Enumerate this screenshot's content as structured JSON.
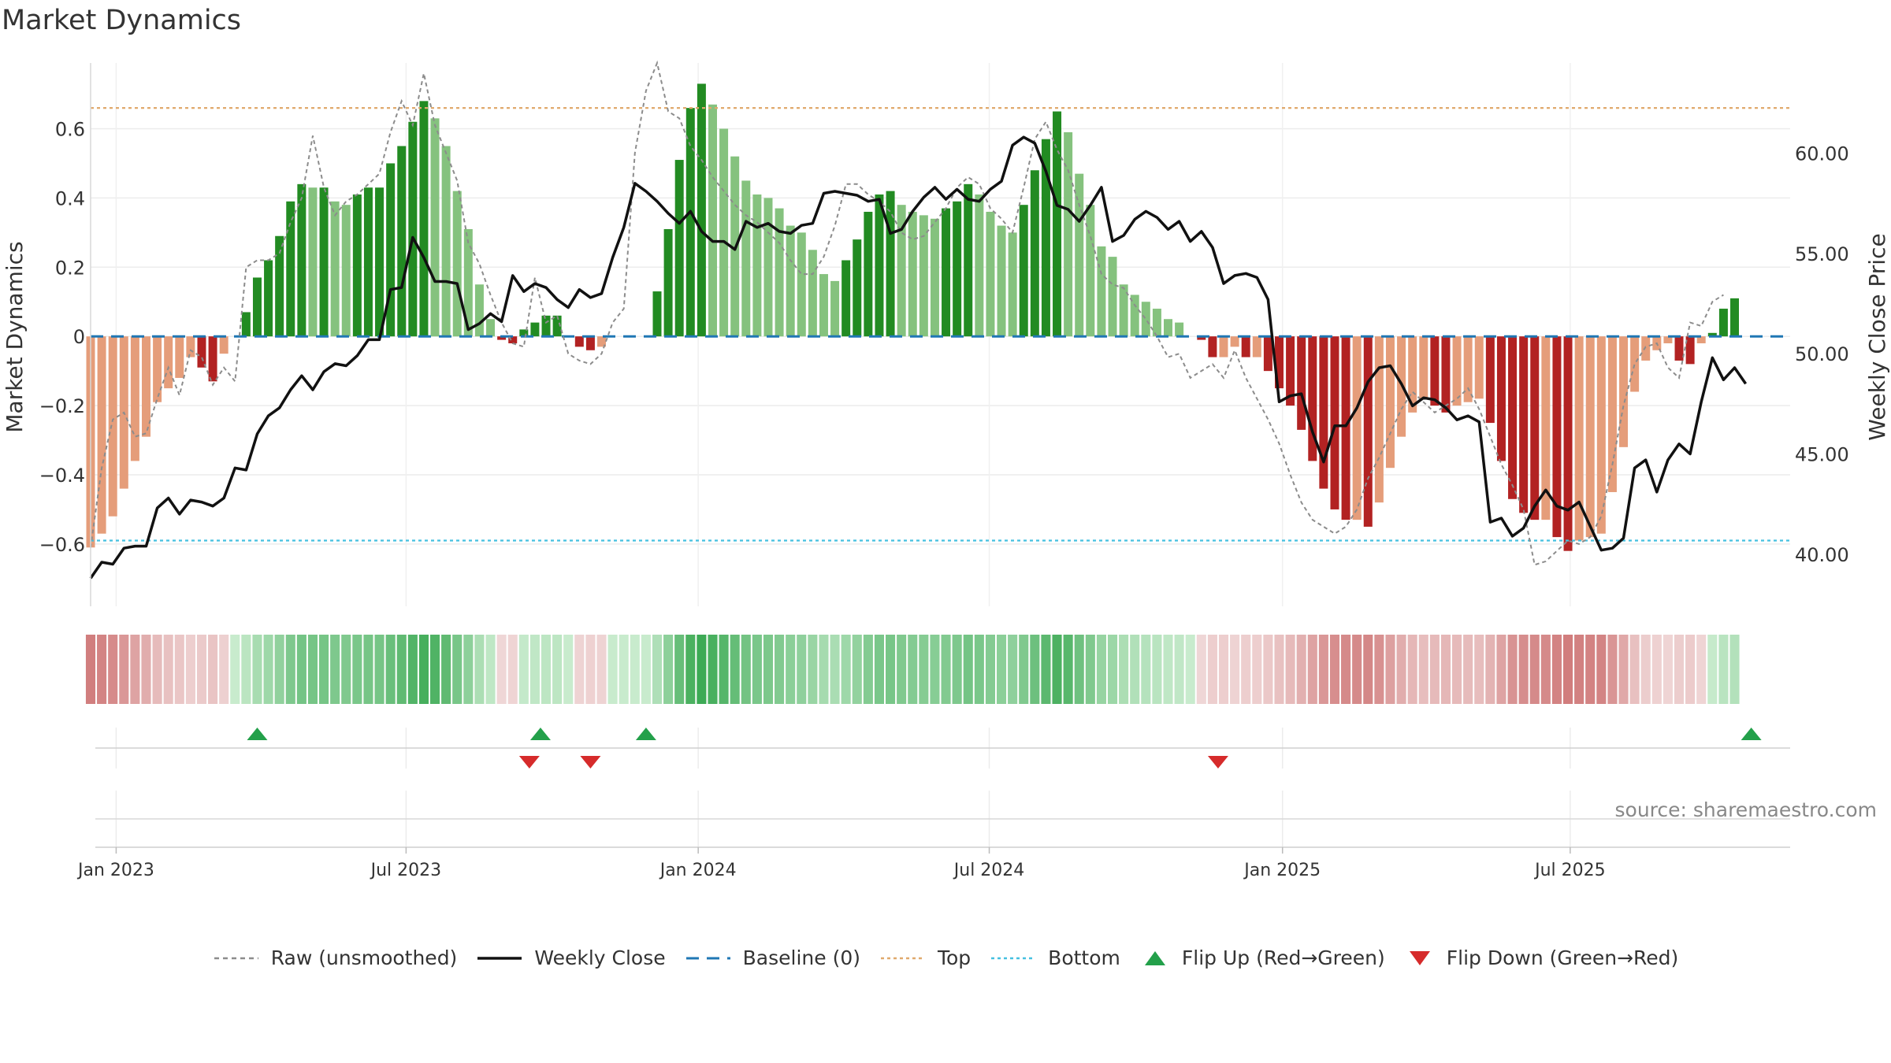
{
  "title": "Market Dynamics",
  "source_note": "source: sharemaestro.com",
  "chart_data": {
    "type": "bar",
    "title": "Market Dynamics",
    "ylabel_left": "Market Dynamics",
    "ylabel_right": "Weekly Close Price",
    "ylim_left": [
      -0.78,
      0.79
    ],
    "ylim_right": [
      37.4,
      64.5
    ],
    "yticks_left": [
      {
        "value": 0.6,
        "label": "0.6"
      },
      {
        "value": 0.4,
        "label": "0.4"
      },
      {
        "value": 0.2,
        "label": "0.2"
      },
      {
        "value": 0.0,
        "label": "0"
      },
      {
        "value": -0.2,
        "label": "−0.2"
      },
      {
        "value": -0.4,
        "label": "−0.4"
      },
      {
        "value": -0.6,
        "label": "−0.6"
      }
    ],
    "yticks_right": [
      {
        "value": 60,
        "label": "60.00"
      },
      {
        "value": 55,
        "label": "55.00"
      },
      {
        "value": 50,
        "label": "50.00"
      },
      {
        "value": 45,
        "label": "45.00"
      },
      {
        "value": 40,
        "label": "40.00"
      }
    ],
    "x_range_weeks": [
      0,
      153
    ],
    "xticks": [
      {
        "week": 2.3,
        "label": "Jan 2023"
      },
      {
        "week": 28.4,
        "label": "Jul 2023"
      },
      {
        "week": 54.7,
        "label": "Jan 2024"
      },
      {
        "week": 80.9,
        "label": "Jul 2024"
      },
      {
        "week": 107.3,
        "label": "Jan 2025"
      },
      {
        "week": 133.2,
        "label": "Jul 2025"
      }
    ],
    "top_level": 0.66,
    "bottom_level": -0.59,
    "baseline": 0,
    "dynamics": [
      -0.61,
      -0.57,
      -0.52,
      -0.44,
      -0.36,
      -0.29,
      -0.19,
      -0.15,
      -0.12,
      -0.06,
      -0.09,
      -0.13,
      -0.05,
      0,
      0.07,
      0.17,
      0.22,
      0.29,
      0.39,
      0.44,
      0.43,
      0.43,
      0.39,
      0.38,
      0.41,
      0.43,
      0.43,
      0.5,
      0.55,
      0.62,
      0.68,
      0.63,
      0.55,
      0.42,
      0.31,
      0.15,
      0.05,
      -0.01,
      -0.02,
      0.02,
      0.04,
      0.06,
      0.06,
      0,
      -0.03,
      -0.04,
      -0.03,
      0,
      0,
      0,
      0,
      0.13,
      0.31,
      0.51,
      0.66,
      0.73,
      0.67,
      0.6,
      0.52,
      0.45,
      0.41,
      0.4,
      0.37,
      0.32,
      0.3,
      0.25,
      0.18,
      0.16,
      0.22,
      0.28,
      0.36,
      0.41,
      0.42,
      0.38,
      0.36,
      0.35,
      0.34,
      0.37,
      0.39,
      0.44,
      0.41,
      0.36,
      0.32,
      0.3,
      0.38,
      0.48,
      0.57,
      0.65,
      0.59,
      0.47,
      0.38,
      0.26,
      0.23,
      0.15,
      0.12,
      0.1,
      0.08,
      0.05,
      0.04,
      0,
      -0.01,
      -0.06,
      -0.06,
      -0.03,
      -0.06,
      -0.06,
      -0.1,
      -0.15,
      -0.2,
      -0.27,
      -0.36,
      -0.44,
      -0.5,
      -0.53,
      -0.53,
      -0.55,
      -0.48,
      -0.38,
      -0.29,
      -0.22,
      -0.18,
      -0.2,
      -0.22,
      -0.2,
      -0.19,
      -0.18,
      -0.25,
      -0.36,
      -0.47,
      -0.51,
      -0.53,
      -0.53,
      -0.58,
      -0.62,
      -0.59,
      -0.58,
      -0.57,
      -0.45,
      -0.32,
      -0.16,
      -0.07,
      -0.04,
      -0.02,
      -0.07,
      -0.08,
      -0.02,
      0.01,
      0.08,
      0.11
    ],
    "weekly_close": [
      38.8,
      39.6,
      39.5,
      40.3,
      40.4,
      40.4,
      42.3,
      42.8,
      42.0,
      42.7,
      42.6,
      42.4,
      42.8,
      44.3,
      44.2,
      46.0,
      46.9,
      47.3,
      48.2,
      48.9,
      48.2,
      49.1,
      49.5,
      49.4,
      49.9,
      50.7,
      50.7,
      53.2,
      53.3,
      55.8,
      54.8,
      53.6,
      53.6,
      53.5,
      51.2,
      51.5,
      52.0,
      51.6,
      53.9,
      53.1,
      53.5,
      53.3,
      52.7,
      52.3,
      53.2,
      52.8,
      53.0,
      54.8,
      56.3,
      58.5,
      58.1,
      57.6,
      57.0,
      56.5,
      57.1,
      56.1,
      55.6,
      55.6,
      55.2,
      56.6,
      56.3,
      56.5,
      56.1,
      56.0,
      56.4,
      56.5,
      58.0,
      58.1,
      58.0,
      57.9,
      57.6,
      57.7,
      56.0,
      56.2,
      57.1,
      57.8,
      58.3,
      57.7,
      58.2,
      57.7,
      57.6,
      58.2,
      58.6,
      60.4,
      60.8,
      60.5,
      59.1,
      57.4,
      57.2,
      56.6,
      57.4,
      58.3,
      55.6,
      55.9,
      56.7,
      57.1,
      56.8,
      56.2,
      56.6,
      55.6,
      56.1,
      55.3,
      53.5,
      53.9,
      54.0,
      53.8,
      52.7,
      47.6,
      47.9,
      48.0,
      46.1,
      44.6,
      46.4,
      46.4,
      47.3,
      48.6,
      49.3,
      49.4,
      48.5,
      47.4,
      47.8,
      47.7,
      47.3,
      46.7,
      46.9,
      46.6,
      41.6,
      41.8,
      40.9,
      41.3,
      42.4,
      43.2,
      42.4,
      42.2,
      42.6,
      41.4,
      40.2,
      40.3,
      40.8,
      44.3,
      44.7,
      43.1,
      44.7,
      45.5,
      45.0,
      47.6,
      49.8,
      48.7,
      49.3,
      48.5
    ],
    "raw_unsmoothed": [
      -0.61,
      -0.38,
      -0.24,
      -0.22,
      -0.29,
      -0.28,
      -0.18,
      -0.09,
      -0.17,
      -0.04,
      -0.06,
      -0.14,
      -0.09,
      -0.13,
      0.2,
      0.22,
      0.22,
      0.24,
      0.33,
      0.4,
      0.58,
      0.43,
      0.35,
      0.39,
      0.41,
      0.44,
      0.47,
      0.59,
      0.68,
      0.61,
      0.76,
      0.61,
      0.53,
      0.45,
      0.27,
      0.21,
      0.12,
      0.04,
      -0.02,
      -0.03,
      0.17,
      0.04,
      0.06,
      -0.05,
      -0.07,
      -0.08,
      -0.05,
      0.04,
      0.08,
      0.53,
      0.71,
      0.79,
      0.65,
      0.63,
      0.55,
      0.51,
      0.46,
      0.42,
      0.38,
      0.35,
      0.33,
      0.3,
      0.27,
      0.22,
      0.18,
      0.18,
      0.23,
      0.32,
      0.44,
      0.44,
      0.41,
      0.39,
      0.36,
      0.3,
      0.28,
      0.29,
      0.33,
      0.37,
      0.43,
      0.46,
      0.44,
      0.37,
      0.34,
      0.3,
      0.43,
      0.57,
      0.62,
      0.54,
      0.48,
      0.38,
      0.29,
      0.18,
      0.15,
      0.14,
      0.09,
      0.05,
      0,
      -0.06,
      -0.05,
      -0.12,
      -0.1,
      -0.08,
      -0.12,
      -0.04,
      -0.12,
      -0.18,
      -0.24,
      -0.31,
      -0.4,
      -0.48,
      -0.53,
      -0.55,
      -0.57,
      -0.55,
      -0.5,
      -0.41,
      -0.35,
      -0.28,
      -0.21,
      -0.16,
      -0.19,
      -0.22,
      -0.2,
      -0.18,
      -0.15,
      -0.21,
      -0.29,
      -0.37,
      -0.43,
      -0.5,
      -0.66,
      -0.65,
      -0.62,
      -0.59,
      -0.6,
      -0.58,
      -0.52,
      -0.37,
      -0.2,
      -0.08,
      -0.03,
      -0.02,
      -0.09,
      -0.12,
      0.04,
      0.03,
      0.1,
      0.12
    ],
    "flips_up_weeks": [
      15,
      40.5,
      50,
      149.5
    ],
    "flips_down_weeks": [
      39.5,
      45,
      101.5
    ],
    "legend": [
      "Raw (unsmoothed)",
      "Weekly Close",
      "Baseline (0)",
      "Top",
      "Bottom",
      "Flip Up (Red→Green)",
      "Flip Down (Green→Red)"
    ],
    "colors": {
      "pos_strong": "#228b22",
      "pos_weak": "#85c27e",
      "neg_strong": "#b22222",
      "neg_weak": "#e59d7a",
      "close_line": "#111111",
      "raw_line": "#8c8c8c",
      "baseline": "#1f77b4",
      "top": "#e0a96d",
      "bottom": "#45c0e0",
      "flip_up": "#23a04a",
      "flip_down": "#d62b2b"
    }
  }
}
